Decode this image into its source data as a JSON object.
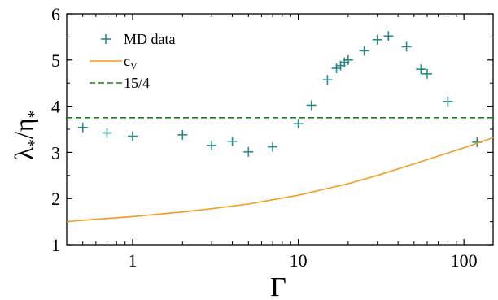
{
  "chart_data": {
    "type": "scatter",
    "xlabel": "Γ",
    "ylabel_parts": [
      "λ",
      "*",
      "/η",
      "*"
    ],
    "xscale": "log",
    "xlim": [
      0.4,
      150
    ],
    "ylim": [
      1,
      6
    ],
    "xticks": [
      1,
      10,
      100
    ],
    "xtick_labels": [
      "1",
      "10",
      "100"
    ],
    "yticks": [
      1,
      2,
      3,
      4,
      5,
      6
    ],
    "ytick_labels": [
      "1",
      "2",
      "3",
      "4",
      "5",
      "6"
    ],
    "grid": false,
    "legend_position": "top-left",
    "series": [
      {
        "name": "MD data",
        "kind": "scatter",
        "marker": "plus",
        "color": "#2a8c86",
        "x": [
          0.5,
          0.7,
          1,
          2,
          3,
          4,
          5,
          7,
          10,
          12,
          15,
          17,
          18,
          19,
          20,
          25,
          30,
          35,
          45,
          55,
          60,
          80,
          120
        ],
        "y": [
          3.54,
          3.42,
          3.35,
          3.38,
          3.15,
          3.24,
          3.01,
          3.12,
          3.62,
          4.02,
          4.57,
          4.82,
          4.88,
          4.95,
          5.0,
          5.2,
          5.44,
          5.52,
          5.29,
          4.8,
          4.7,
          4.1,
          3.22
        ]
      },
      {
        "name_parts": [
          "c",
          "V"
        ],
        "kind": "line",
        "color": "#f39c1e",
        "x": [
          0.4,
          0.5,
          1,
          2,
          3,
          5,
          10,
          20,
          30,
          50,
          100,
          150
        ],
        "y": [
          1.5,
          1.53,
          1.61,
          1.71,
          1.78,
          1.88,
          2.07,
          2.32,
          2.5,
          2.75,
          3.1,
          3.32
        ]
      },
      {
        "name": "15/4",
        "kind": "line",
        "dash": true,
        "color": "#1d7a1d",
        "x": [
          0.4,
          150
        ],
        "y": [
          3.75,
          3.75
        ]
      }
    ]
  }
}
